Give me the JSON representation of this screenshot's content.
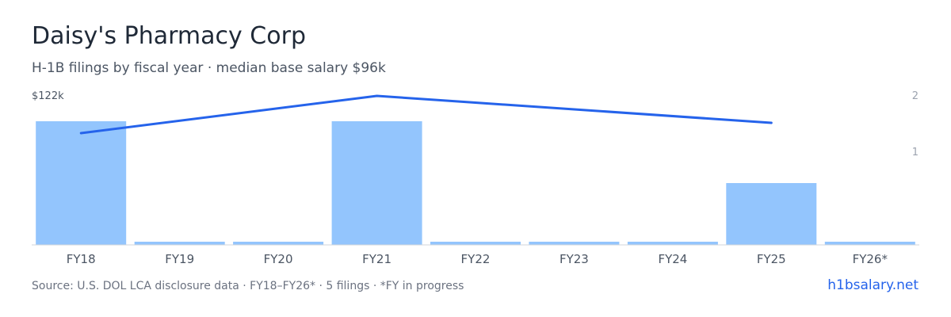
{
  "header": {
    "title": "Daisy's Pharmacy Corp",
    "subtitle": "H-1B filings by fiscal year · median base salary $96k"
  },
  "footer": {
    "source": "Source: U.S. DOL LCA disclosure data · FY18–FY26* · 5 filings · *FY in progress",
    "link": "h1bsalary.net"
  },
  "colors": {
    "bar": "#93c5fd",
    "line": "#2563eb",
    "axis": "#d1d5db",
    "tick": "#6b7280"
  },
  "chart_data": {
    "type": "bar",
    "title": "Daisy's Pharmacy Corp",
    "subtitle": "H-1B filings by fiscal year · median base salary $96k",
    "categories": [
      "FY18",
      "FY19",
      "FY20",
      "FY21",
      "FY22",
      "FY23",
      "FY24",
      "FY25",
      "FY26*"
    ],
    "series": [
      {
        "type": "bar",
        "axis": "right",
        "values": [
          2,
          0,
          0,
          2,
          0,
          0,
          0,
          1,
          0
        ]
      },
      {
        "type": "line",
        "axis": "left",
        "values": [
          96,
          null,
          null,
          122,
          null,
          null,
          null,
          103,
          null
        ]
      }
    ],
    "left_axis": {
      "max_label": "$122k",
      "ylim": [
        42,
        122
      ]
    },
    "right_axis": {
      "tick_labels": [
        "2",
        "1"
      ],
      "ylim": [
        0,
        2
      ]
    },
    "grid": false
  }
}
